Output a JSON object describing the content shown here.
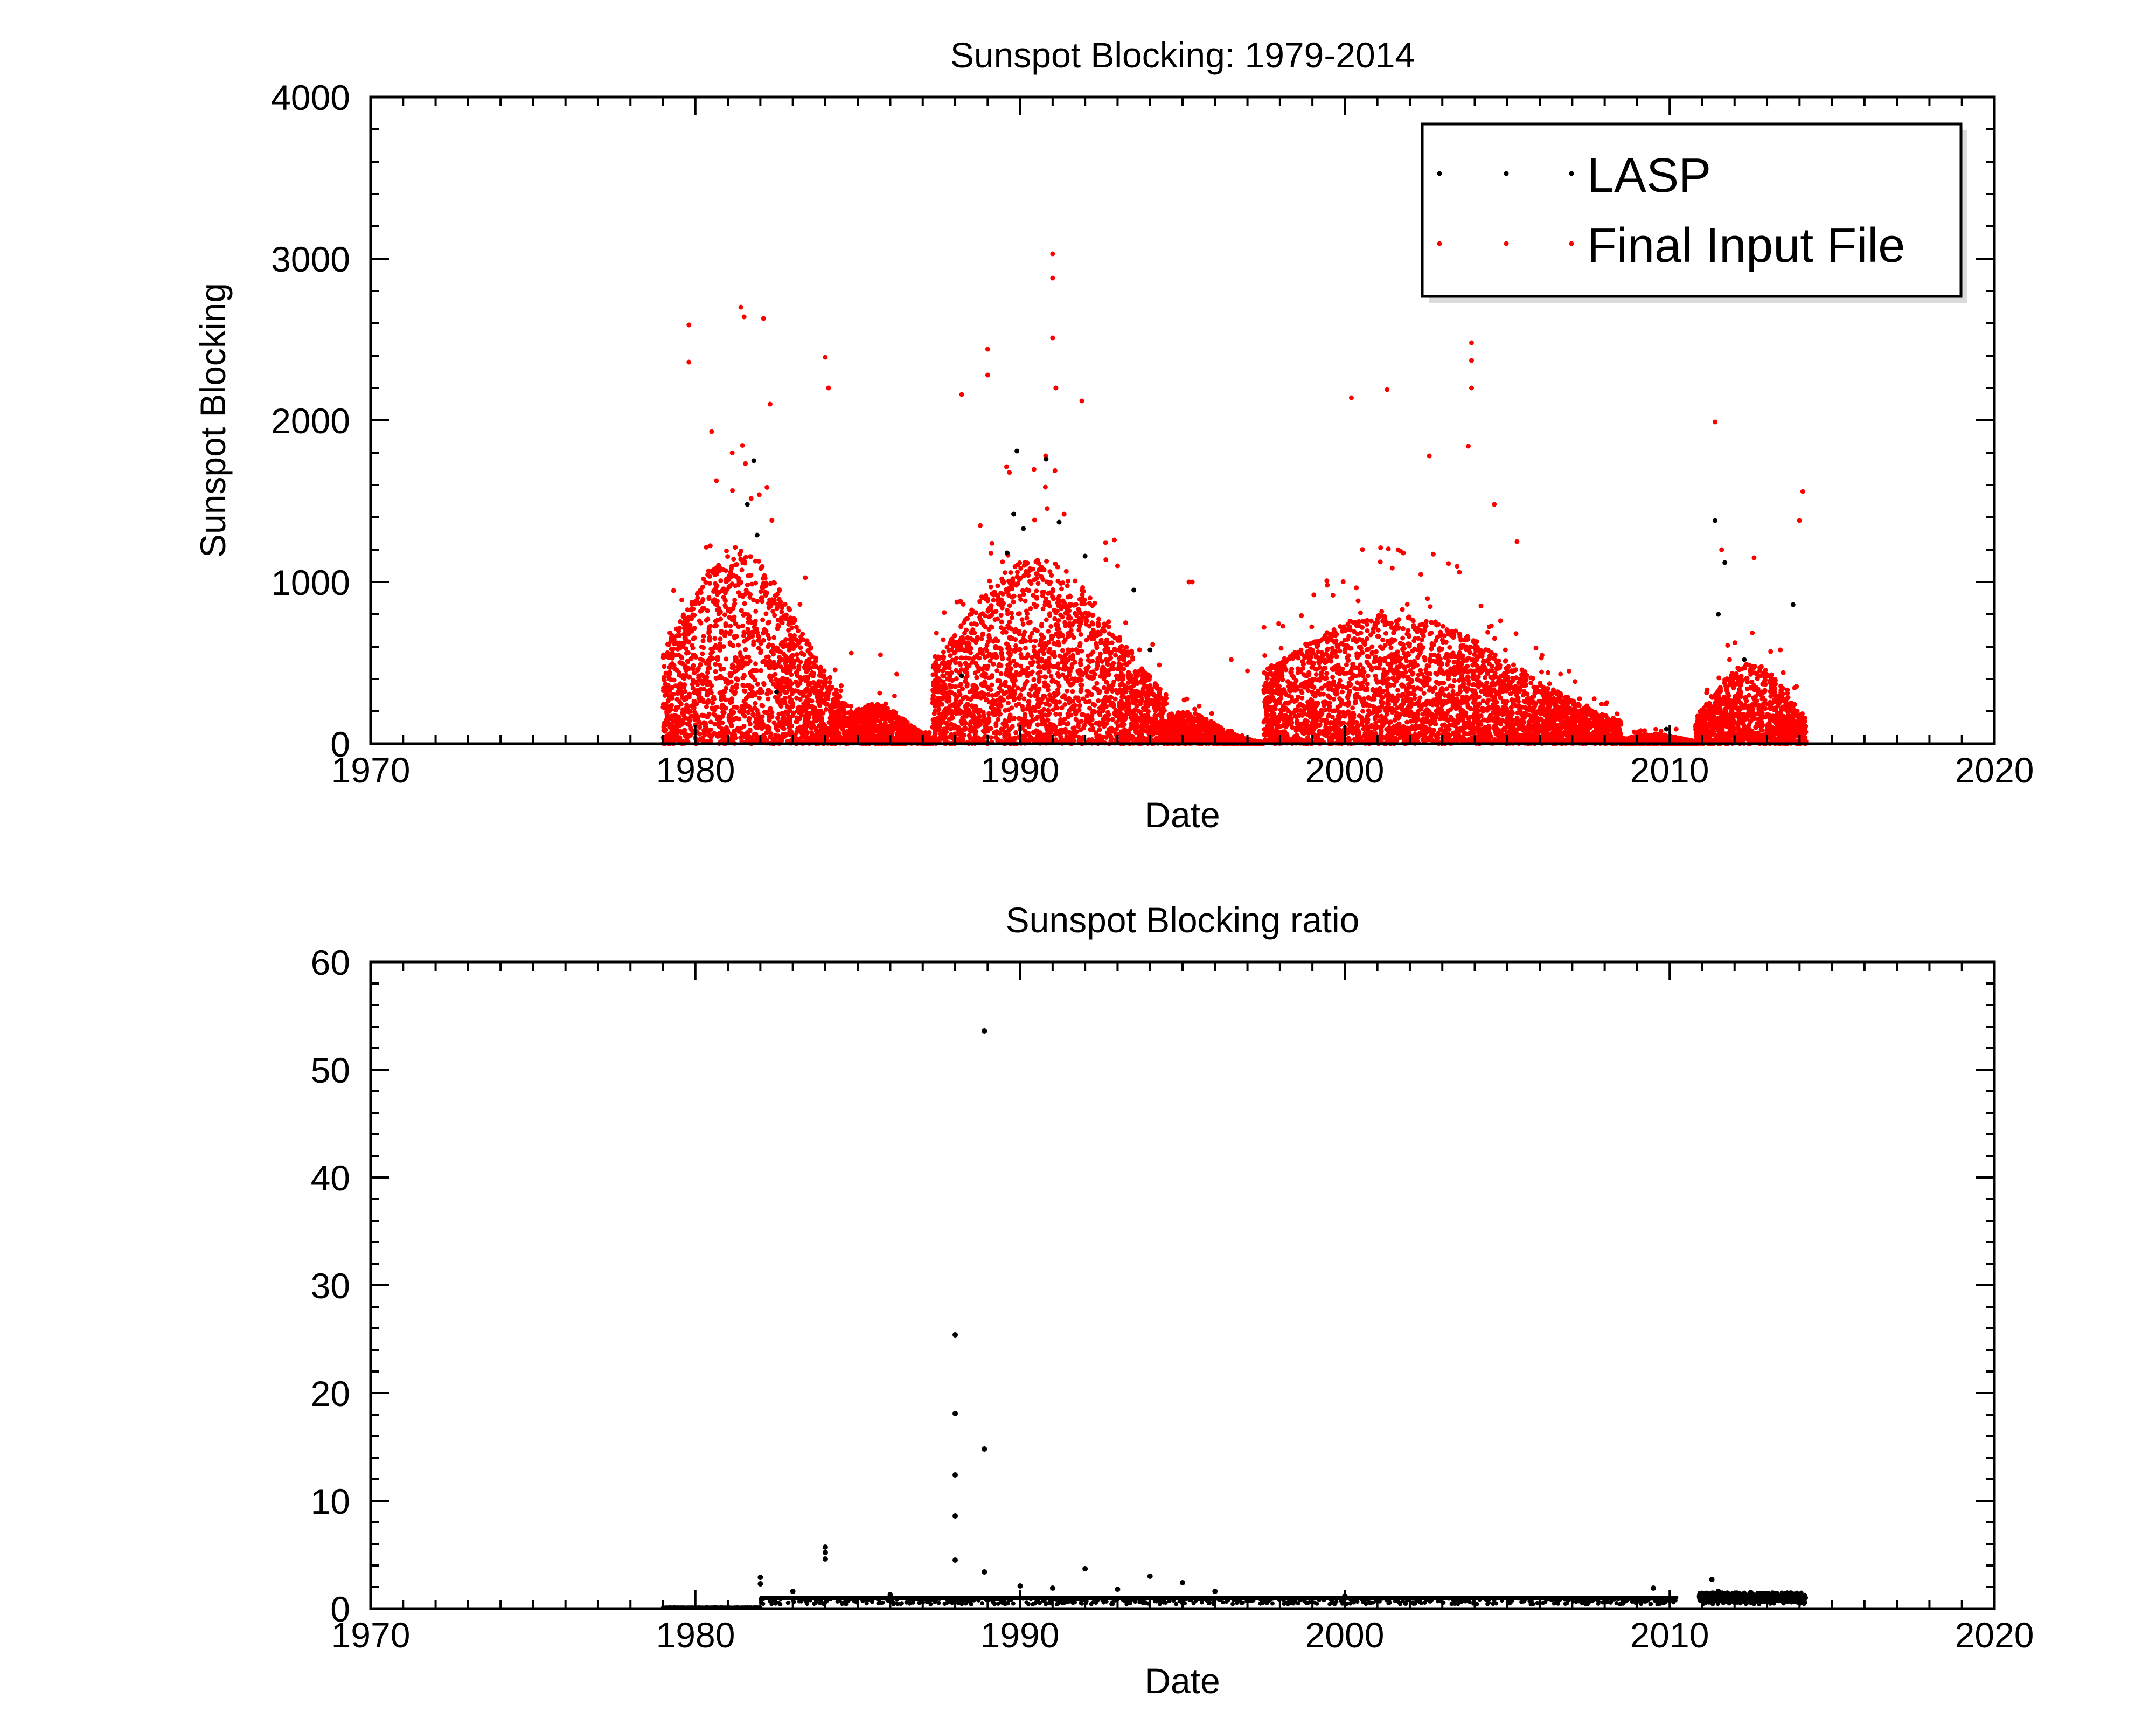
{
  "chart_data": [
    {
      "type": "scatter",
      "title": "Sunspot Blocking: 1979-2014",
      "xlabel": "Date",
      "ylabel": "Sunspot Blocking",
      "xlim": [
        1970,
        2020
      ],
      "ylim": [
        0,
        4000
      ],
      "xticks": [
        1970,
        1980,
        1990,
        2000,
        2010,
        2020
      ],
      "yticks": [
        0,
        1000,
        2000,
        3000,
        4000
      ],
      "legend_position": "top-right",
      "grid": false,
      "series": [
        {
          "name": "LASP",
          "color": "#000000",
          "description_points": [
            [
              1981.8,
              1750
            ],
            [
              1981.6,
              1480
            ],
            [
              1981.9,
              1290
            ],
            [
              1989.9,
              1810
            ],
            [
              1989.8,
              1420
            ],
            [
              1990.1,
              1330
            ],
            [
              1989.6,
              1180
            ],
            [
              1990.8,
              1760
            ],
            [
              1991.2,
              1370
            ],
            [
              1992.0,
              1160
            ],
            [
              1993.5,
              950
            ],
            [
              1994.0,
              580
            ],
            [
              2011.4,
              1380
            ],
            [
              2011.7,
              1120
            ],
            [
              2011.5,
              800
            ],
            [
              2012.3,
              520
            ],
            [
              2013.8,
              860
            ],
            [
              2009.9,
              90
            ],
            [
              1982.5,
              320
            ],
            [
              1988.2,
              420
            ]
          ]
        },
        {
          "name": "Final Input File",
          "color": "#ff0000",
          "cycles": [
            {
              "start": 1979.0,
              "end": 1984.6,
              "peak_year": 1981.3,
              "typical_max": 1200,
              "spikes": [
                [
                  1979.8,
                  2590
                ],
                [
                  1979.8,
                  2360
                ],
                [
                  1981.4,
                  2700
                ],
                [
                  1981.5,
                  2640
                ],
                [
                  1982.1,
                  2630
                ],
                [
                  1984.0,
                  2390
                ],
                [
                  1984.1,
                  2200
                ],
                [
                  1982.3,
                  2100
                ],
                [
                  1980.5,
                  1930
                ]
              ]
            },
            {
              "start": 1984.6,
              "end": 1987.3,
              "peak_year": 1985.5,
              "typical_max": 250,
              "spikes": [
                [
                  1984.8,
                  560
                ],
                [
                  1985.7,
                  550
                ],
                [
                  1986.2,
                  430
                ]
              ]
            },
            {
              "start": 1987.3,
              "end": 1994.5,
              "peak_year": 1990.5,
              "typical_max": 1150,
              "spikes": [
                [
                  1991.0,
                  3030
                ],
                [
                  1991.0,
                  2880
                ],
                [
                  1991.0,
                  2510
                ],
                [
                  1989.0,
                  2440
                ],
                [
                  1989.0,
                  2280
                ],
                [
                  1988.2,
                  2160
                ],
                [
                  1991.1,
                  2200
                ],
                [
                  1991.9,
                  2120
                ],
                [
                  1992.9,
                  1260
                ],
                [
                  1993.0,
                  1100
                ],
                [
                  1995.3,
                  1000
                ]
              ]
            },
            {
              "start": 1994.5,
              "end": 1997.5,
              "peak_year": 1995.0,
              "typical_max": 200,
              "spikes": [
                [
                  1995.2,
                  1000
                ],
                [
                  1996.5,
                  520
                ],
                [
                  1997.0,
                  450
                ]
              ]
            },
            {
              "start": 1997.5,
              "end": 2008.5,
              "peak_year": 2001.5,
              "typical_max": 800,
              "spikes": [
                [
                  2000.2,
                  2140
                ],
                [
                  2001.3,
                  2190
                ],
                [
                  2003.9,
                  2480
                ],
                [
                  2003.9,
                  2370
                ],
                [
                  2003.9,
                  2200
                ],
                [
                  2003.8,
                  1840
                ],
                [
                  2002.6,
                  1780
                ],
                [
                  2004.6,
                  1480
                ],
                [
                  2005.3,
                  1250
                ]
              ]
            },
            {
              "start": 2008.5,
              "end": 2010.8,
              "peak_year": 2009.5,
              "typical_max": 60,
              "spikes": [
                [
                  2010.2,
                  90
                ]
              ]
            },
            {
              "start": 2010.8,
              "end": 2014.2,
              "peak_year": 2012.5,
              "typical_max": 500,
              "spikes": [
                [
                  2011.4,
                  1990
                ],
                [
                  2014.1,
                  1560
                ],
                [
                  2014.0,
                  1380
                ],
                [
                  2012.6,
                  1150
                ],
                [
                  2011.6,
                  1200
                ]
              ]
            }
          ]
        }
      ]
    },
    {
      "type": "scatter",
      "title": "Sunspot Blocking ratio",
      "xlabel": "Date",
      "ylabel": "",
      "xlim": [
        1970,
        2020
      ],
      "ylim": [
        0,
        60
      ],
      "xticks": [
        1970,
        1980,
        1990,
        2000,
        2010,
        2020
      ],
      "yticks": [
        0,
        10,
        20,
        30,
        40,
        50,
        60
      ],
      "grid": false,
      "series": [
        {
          "name": "",
          "color": "#000000",
          "baseline_value": 1.0,
          "baseline_range": [
            1979.0,
            2014.2
          ],
          "gap": [
            2010.2,
            2010.9
          ],
          "outliers": [
            [
              1988.9,
              53.6
            ],
            [
              1988.0,
              25.4
            ],
            [
              1988.0,
              18.1
            ],
            [
              1988.0,
              12.4
            ],
            [
              1988.0,
              8.6
            ],
            [
              1988.0,
              4.5
            ],
            [
              1988.9,
              14.8
            ],
            [
              1988.9,
              3.4
            ],
            [
              1984.0,
              5.7
            ],
            [
              1984.0,
              5.2
            ],
            [
              1984.0,
              4.6
            ],
            [
              1982.0,
              2.9
            ],
            [
              1982.0,
              2.3
            ],
            [
              1983.0,
              1.6
            ],
            [
              1990.0,
              2.1
            ],
            [
              1991.0,
              1.9
            ],
            [
              1992.0,
              3.7
            ],
            [
              1993.0,
              1.8
            ],
            [
              1994.0,
              3.0
            ],
            [
              1995.0,
              2.4
            ],
            [
              1996.0,
              1.6
            ],
            [
              2009.5,
              1.9
            ],
            [
              2011.3,
              2.7
            ],
            [
              2011.5,
              1.6
            ],
            [
              2012.5,
              1.5
            ],
            [
              2013.6,
              1.4
            ],
            [
              1986.0,
              1.3
            ],
            [
              2000.0,
              1.2
            ]
          ]
        }
      ]
    }
  ],
  "legend": {
    "entries": [
      {
        "label": "LASP",
        "color": "#000000"
      },
      {
        "label": "Final Input File",
        "color": "#ff0000"
      }
    ]
  }
}
